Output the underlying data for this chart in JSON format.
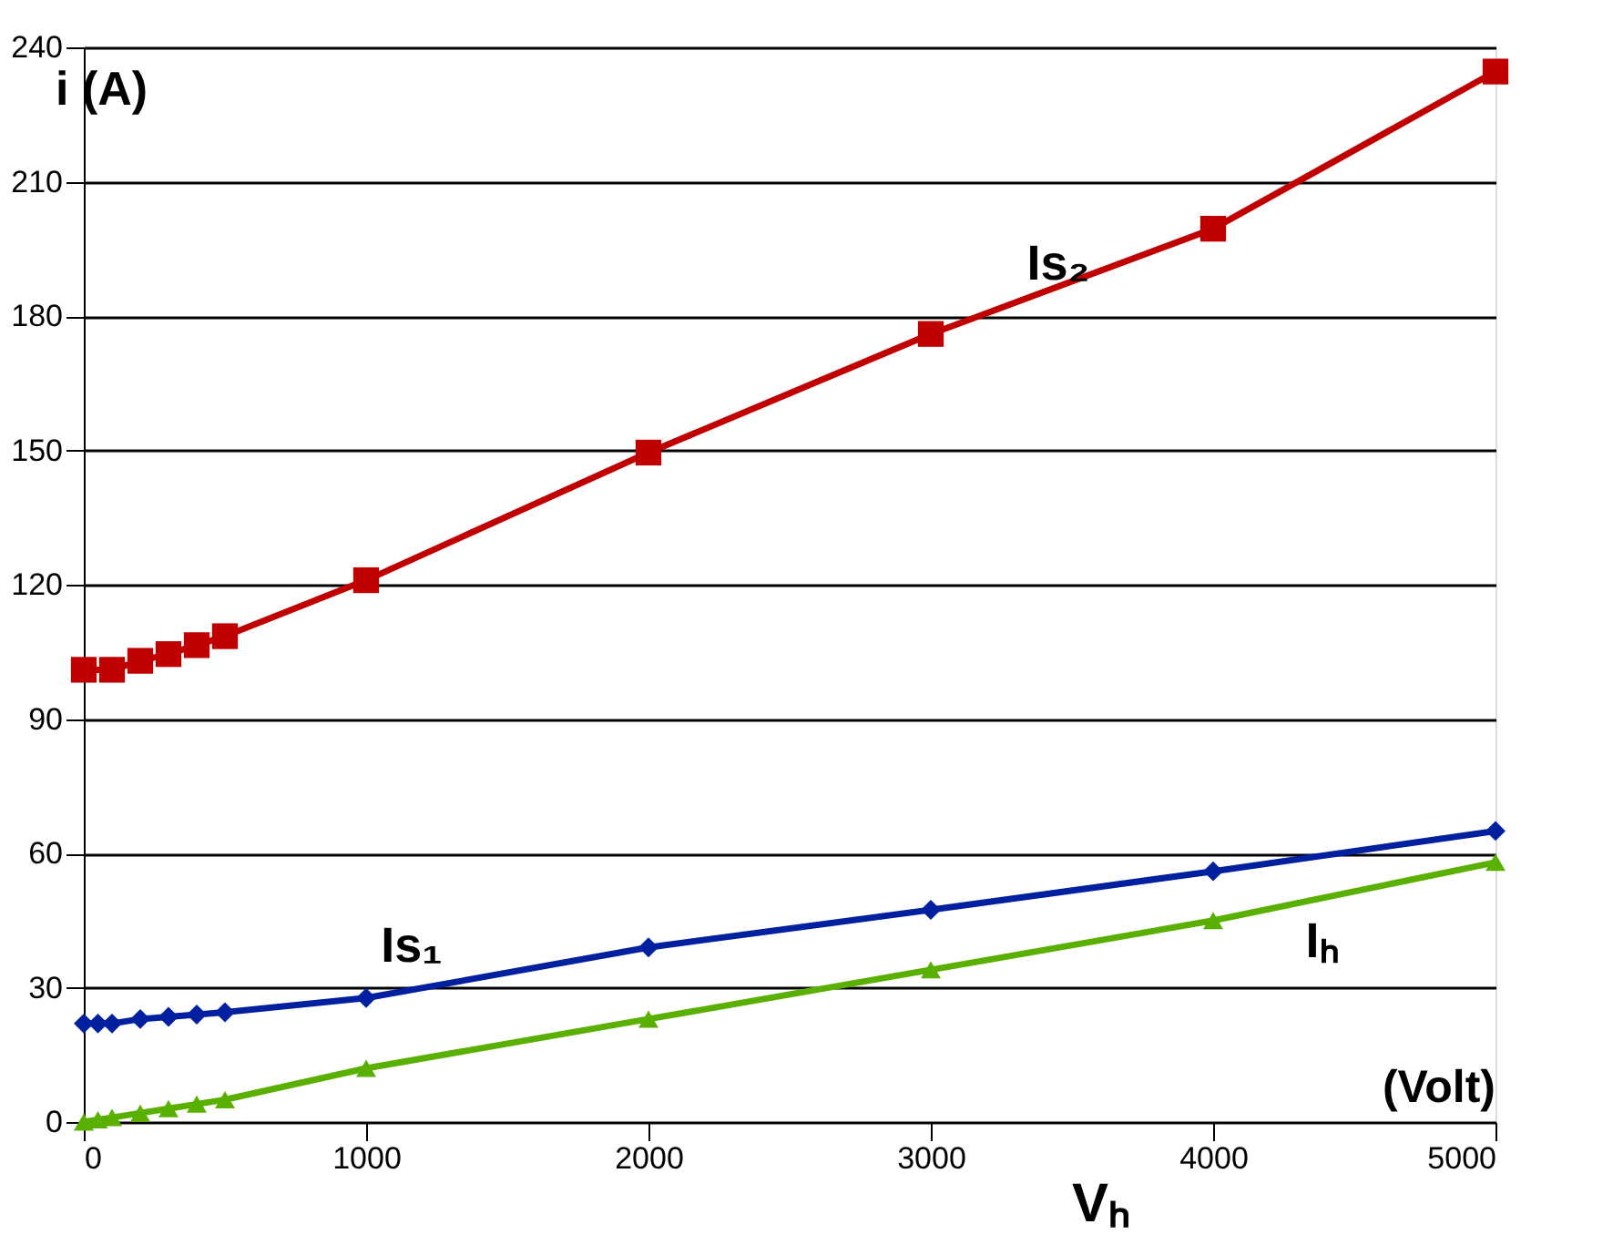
{
  "chart_data": {
    "type": "line",
    "xlabel": "Vₕ",
    "ylabel": "i (A)",
    "annotations": [
      "(Volt)"
    ],
    "x": [
      0,
      50,
      100,
      200,
      300,
      400,
      500,
      1000,
      2000,
      3000,
      4000,
      5000
    ],
    "xlim": [
      0,
      5000
    ],
    "xticks": [
      0,
      1000,
      2000,
      3000,
      4000,
      5000
    ],
    "ylim": [
      0,
      240
    ],
    "yticks": [
      0,
      30,
      60,
      90,
      120,
      150,
      180,
      210,
      240
    ],
    "grid": "y",
    "legend": false,
    "line_style": "solid",
    "series": [
      {
        "name": "Is₂",
        "color": "#c00000",
        "marker": "square",
        "values": [
          101,
          null,
          101,
          103,
          104.5,
          106.5,
          108.5,
          121,
          149.5,
          176,
          199.5,
          234.6
        ]
      },
      {
        "name": "Is₁",
        "color": "#0020a0",
        "marker": "diamond",
        "values": [
          22,
          22,
          22,
          23,
          23.5,
          24,
          24.5,
          27.7,
          39,
          47.4,
          56,
          65
        ]
      },
      {
        "name": "Iₕ",
        "color": "#5ab000",
        "marker": "triangle",
        "values": [
          0,
          0.5,
          1,
          2,
          3,
          4,
          5,
          12,
          23,
          34,
          45,
          58
        ]
      }
    ]
  }
}
